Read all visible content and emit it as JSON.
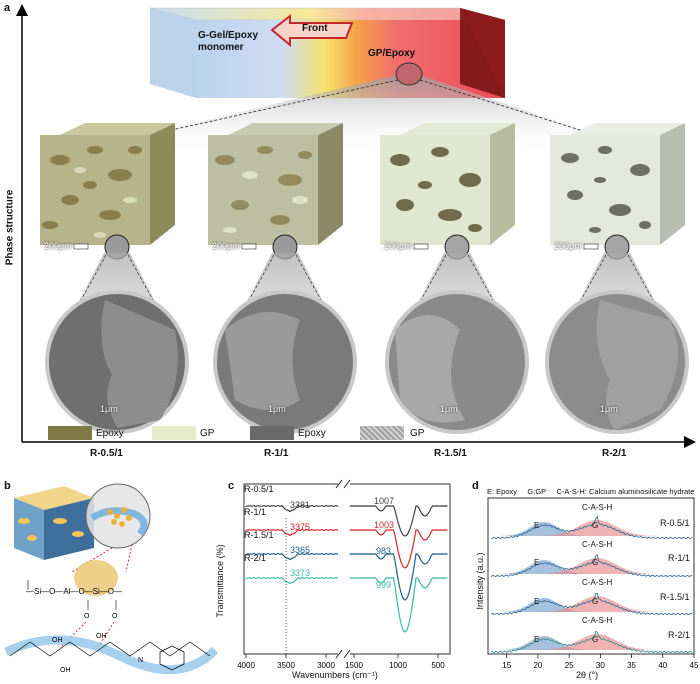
{
  "panel_a": {
    "letter": "a",
    "y_axis_label": "Phase structure",
    "bar": {
      "left_text": "G-Gel/Epoxy monomer",
      "front_text": "Front",
      "right_text": "GP/Epoxy"
    },
    "samples": [
      {
        "label": "R-0.5/1",
        "scale_top": "200μm",
        "scale_sem": "1μm"
      },
      {
        "label": "R-1/1",
        "scale_top": "200μm",
        "scale_sem": "1μm"
      },
      {
        "label": "R-1.5/1",
        "scale_top": "200μm",
        "scale_sem": "1μm"
      },
      {
        "label": "R-2/1",
        "scale_top": "200μm",
        "scale_sem": "1μm"
      }
    ],
    "legend": [
      {
        "name": "Epoxy",
        "color": "#7f7a45"
      },
      {
        "name": "GP",
        "color": "#e6ecc9"
      },
      {
        "name": "Epoxy",
        "color": "#6a6a6a"
      },
      {
        "name": "GP",
        "color": "#b9b9b9"
      }
    ]
  },
  "panel_b": {
    "letter": "b"
  },
  "panel_c": {
    "letter": "c",
    "chart_data": {
      "type": "line",
      "xlabel": "Wavenumbers (cm⁻¹)",
      "ylabel": "Transmittance (%)",
      "xlim": [
        4000,
        450
      ],
      "x_ticks": [
        "4000",
        "3500",
        "3000",
        "1500",
        "1000",
        "500"
      ],
      "series": [
        {
          "name": "R-0.5/1",
          "color": "#404040",
          "peak_oh": "3381",
          "peak_sio": "1007"
        },
        {
          "name": "R-1/1",
          "color": "#d62728",
          "peak_oh": "3375",
          "peak_sio": "1003"
        },
        {
          "name": "R-1.5/1",
          "color": "#1f5f8b",
          "peak_oh": "3365",
          "peak_sio": "983"
        },
        {
          "name": "R-2/1",
          "color": "#3cb8a8",
          "peak_oh": "3373",
          "peak_sio": "999"
        }
      ]
    }
  },
  "panel_d": {
    "letter": "d",
    "header": "E: Epoxy     G:GP     C-A-S-H: Calcium aluminosilicate hydrate",
    "chart_data": {
      "type": "line",
      "xlabel": "2θ (°)",
      "ylabel": "Intensity (a.u.)",
      "xlim": [
        12,
        45
      ],
      "x_ticks": [
        "15",
        "20",
        "25",
        "30",
        "35",
        "40",
        "45"
      ],
      "series": [
        {
          "name": "R-0.5/1",
          "peak_label": "C-A-S-H",
          "e_label": "E",
          "g_label": "G"
        },
        {
          "name": "R-1/1",
          "peak_label": "C-A-S-H",
          "e_label": "E",
          "g_label": "G"
        },
        {
          "name": "R-1.5/1",
          "peak_label": "C-A-S-H",
          "e_label": "E",
          "g_label": "G"
        },
        {
          "name": "R-2/1",
          "peak_label": "C-A-S-H",
          "e_label": "E",
          "g_label": "G"
        }
      ]
    }
  }
}
